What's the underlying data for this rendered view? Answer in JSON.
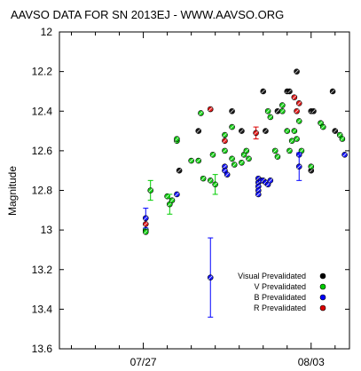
{
  "chart_data": {
    "type": "scatter",
    "title": "AAVSO DATA FOR SN 2013EJ - WWW.AAVSO.ORG",
    "xlabel": "",
    "ylabel": "Magnitude",
    "ylim": [
      13.6,
      12.0
    ],
    "y_inverted": true,
    "x_units": "days relative to 07/27",
    "xlim": [
      -3.5,
      8.6
    ],
    "x_ticks": [
      {
        "x": 0,
        "label": "07/27"
      },
      {
        "x": 7,
        "label": "08/03"
      }
    ],
    "y_ticks": [
      12,
      12.2,
      12.4,
      12.6,
      12.8,
      13,
      13.2,
      13.4,
      13.6
    ],
    "y_tick_labels": [
      "12",
      "12.2",
      "12.4",
      "12.6",
      "12.8",
      "13",
      "13.2",
      "13.4",
      "13.6"
    ],
    "grid": false,
    "legend_position": "bottom-right",
    "series": [
      {
        "name": "Visual Prevalidated",
        "color": "#000000",
        "points": [
          {
            "x": 1.5,
            "y": 12.7
          },
          {
            "x": 2.3,
            "y": 12.5
          },
          {
            "x": 3.7,
            "y": 12.4
          },
          {
            "x": 4.1,
            "y": 12.5
          },
          {
            "x": 5.0,
            "y": 12.3
          },
          {
            "x": 5.1,
            "y": 12.5
          },
          {
            "x": 5.6,
            "y": 12.4
          },
          {
            "x": 6.0,
            "y": 12.3
          },
          {
            "x": 6.1,
            "y": 12.3
          },
          {
            "x": 6.4,
            "y": 12.2
          },
          {
            "x": 7.0,
            "y": 12.4
          },
          {
            "x": 7.1,
            "y": 12.4
          },
          {
            "x": 7.0,
            "y": 12.7
          },
          {
            "x": 7.9,
            "y": 12.3
          },
          {
            "x": 8.0,
            "y": 12.5
          }
        ]
      },
      {
        "name": "V Prevalidated",
        "color": "#00cc00",
        "points": [
          {
            "x": 0.1,
            "y": 13.0
          },
          {
            "x": 0.1,
            "y": 13.01
          },
          {
            "x": 0.3,
            "y": 12.8,
            "err": 0.05
          },
          {
            "x": 1.0,
            "y": 12.83
          },
          {
            "x": 1.1,
            "y": 12.87,
            "err": 0.05
          },
          {
            "x": 1.2,
            "y": 12.85
          },
          {
            "x": 1.4,
            "y": 12.55
          },
          {
            "x": 1.4,
            "y": 12.54
          },
          {
            "x": 2.0,
            "y": 12.65
          },
          {
            "x": 2.3,
            "y": 12.65
          },
          {
            "x": 2.4,
            "y": 12.41
          },
          {
            "x": 2.5,
            "y": 12.74
          },
          {
            "x": 2.8,
            "y": 12.75
          },
          {
            "x": 3.0,
            "y": 12.77,
            "err": 0.05
          },
          {
            "x": 2.9,
            "y": 12.62
          },
          {
            "x": 3.4,
            "y": 12.6
          },
          {
            "x": 3.4,
            "y": 12.52
          },
          {
            "x": 3.7,
            "y": 12.48
          },
          {
            "x": 3.7,
            "y": 12.64
          },
          {
            "x": 3.8,
            "y": 12.67
          },
          {
            "x": 4.2,
            "y": 12.62
          },
          {
            "x": 4.1,
            "y": 12.66
          },
          {
            "x": 4.3,
            "y": 12.6
          },
          {
            "x": 4.4,
            "y": 12.64
          },
          {
            "x": 5.2,
            "y": 12.4
          },
          {
            "x": 5.3,
            "y": 12.43
          },
          {
            "x": 5.5,
            "y": 12.6
          },
          {
            "x": 5.6,
            "y": 12.63
          },
          {
            "x": 5.8,
            "y": 12.4
          },
          {
            "x": 5.8,
            "y": 12.37
          },
          {
            "x": 6.0,
            "y": 12.5
          },
          {
            "x": 6.1,
            "y": 12.6
          },
          {
            "x": 6.2,
            "y": 12.55
          },
          {
            "x": 6.3,
            "y": 12.5
          },
          {
            "x": 6.4,
            "y": 12.54
          },
          {
            "x": 6.5,
            "y": 12.45
          },
          {
            "x": 6.6,
            "y": 12.6
          },
          {
            "x": 7.0,
            "y": 12.68
          },
          {
            "x": 7.4,
            "y": 12.46
          },
          {
            "x": 7.5,
            "y": 12.48
          },
          {
            "x": 8.2,
            "y": 12.52
          },
          {
            "x": 8.3,
            "y": 12.54
          }
        ]
      },
      {
        "name": "B Prevalidated",
        "color": "#0000ff",
        "points": [
          {
            "x": 0.1,
            "y": 12.94,
            "err": 0.05
          },
          {
            "x": 1.4,
            "y": 12.82
          },
          {
            "x": 2.8,
            "y": 13.24,
            "err": 0.2
          },
          {
            "x": 3.4,
            "y": 12.68
          },
          {
            "x": 3.4,
            "y": 12.7
          },
          {
            "x": 3.5,
            "y": 12.72
          },
          {
            "x": 4.8,
            "y": 12.74
          },
          {
            "x": 4.8,
            "y": 12.76
          },
          {
            "x": 4.8,
            "y": 12.78
          },
          {
            "x": 4.8,
            "y": 12.8
          },
          {
            "x": 4.8,
            "y": 12.82
          },
          {
            "x": 4.9,
            "y": 12.75
          },
          {
            "x": 5.0,
            "y": 12.75
          },
          {
            "x": 5.1,
            "y": 12.76
          },
          {
            "x": 5.2,
            "y": 12.77
          },
          {
            "x": 5.3,
            "y": 12.75
          },
          {
            "x": 6.5,
            "y": 12.62
          },
          {
            "x": 6.5,
            "y": 12.68,
            "err": 0.07
          },
          {
            "x": 8.4,
            "y": 12.62
          }
        ]
      },
      {
        "name": "R Prevalidated",
        "color": "#dd0000",
        "points": [
          {
            "x": 0.1,
            "y": 12.97
          },
          {
            "x": 2.8,
            "y": 12.39
          },
          {
            "x": 3.4,
            "y": 12.55
          },
          {
            "x": 4.7,
            "y": 12.51,
            "err": 0.03
          },
          {
            "x": 6.3,
            "y": 12.33
          },
          {
            "x": 6.4,
            "y": 12.4
          },
          {
            "x": 6.5,
            "y": 12.36
          }
        ]
      }
    ]
  }
}
